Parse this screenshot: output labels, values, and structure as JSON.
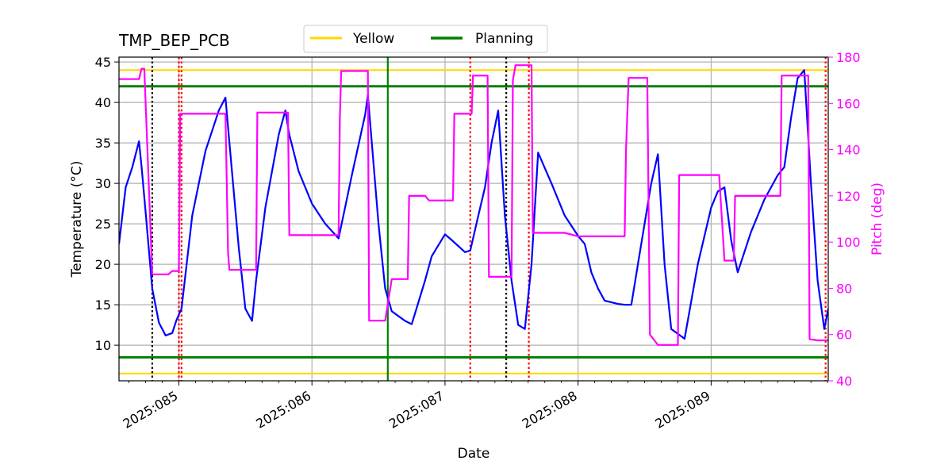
{
  "chart_data": {
    "type": "line",
    "title": "TMP_BEP_PCB",
    "xlabel": "Date",
    "ylabel": "Temperature ($^\\circ$C)",
    "ylabel_display": "Temperature (°C)",
    "y2label": "Pitch (deg)",
    "xlim": [
      84.55,
      89.88
    ],
    "ylim": [
      5.6,
      45.6
    ],
    "y2lim": [
      40,
      180
    ],
    "x_ticks": [
      85,
      86,
      87,
      88,
      89
    ],
    "x_tick_labels": [
      "2025:085",
      "2025:086",
      "2025:087",
      "2025:088",
      "2025:089"
    ],
    "y_ticks": [
      10,
      15,
      20,
      25,
      30,
      35,
      40,
      45
    ],
    "y2_ticks": [
      40,
      60,
      80,
      100,
      120,
      140,
      160,
      180
    ],
    "grid": true,
    "legend_position": "top-center",
    "legend": [
      {
        "name": "Yellow",
        "color": "#ffd700"
      },
      {
        "name": "Planning",
        "color": "#008000"
      }
    ],
    "limits": {
      "yellow": [
        6.5,
        44.0
      ],
      "planning": [
        8.5,
        42.0
      ]
    },
    "colors": {
      "temperature": "#0000ff",
      "pitch": "#ff00ff",
      "yellow": "#ffd700",
      "planning": "#008000",
      "grid": "#b0b0b0"
    },
    "vlines": [
      {
        "x": 84.8,
        "color": "#000000",
        "style": "dotted"
      },
      {
        "x": 85.0,
        "color": "#ff0000",
        "style": "dotted"
      },
      {
        "x": 85.02,
        "color": "#ff0000",
        "style": "dotted"
      },
      {
        "x": 86.57,
        "color": "#008000",
        "style": "solid"
      },
      {
        "x": 87.19,
        "color": "#ff0000",
        "style": "dotted"
      },
      {
        "x": 87.46,
        "color": "#000000",
        "style": "dotted"
      },
      {
        "x": 87.63,
        "color": "#ff0000",
        "style": "dotted"
      },
      {
        "x": 89.86,
        "color": "#ff0000",
        "style": "dotted"
      }
    ],
    "series": [
      {
        "axis": "left",
        "color": "#0000ff",
        "x": [
          84.55,
          84.6,
          84.65,
          84.7,
          84.72,
          84.75,
          84.8,
          84.85,
          84.9,
          84.95,
          84.98,
          85.0,
          85.02,
          85.1,
          85.2,
          85.3,
          85.35,
          85.38,
          85.45,
          85.5,
          85.55,
          85.58,
          85.65,
          85.75,
          85.8,
          85.83,
          85.9,
          86.0,
          86.1,
          86.2,
          86.3,
          86.4,
          86.42,
          86.5,
          86.55,
          86.6,
          86.7,
          86.75,
          86.85,
          86.9,
          87.0,
          87.05,
          87.15,
          87.19,
          87.25,
          87.3,
          87.35,
          87.4,
          87.45,
          87.5,
          87.55,
          87.6,
          87.65,
          87.7,
          87.8,
          87.9,
          88.0,
          88.05,
          88.1,
          88.15,
          88.2,
          88.3,
          88.35,
          88.4,
          88.45,
          88.55,
          88.6,
          88.65,
          88.7,
          88.8,
          88.9,
          89.0,
          89.05,
          89.1,
          89.15,
          89.2,
          89.3,
          89.4,
          89.5,
          89.55,
          89.6,
          89.65,
          89.7,
          89.75,
          89.8,
          89.85,
          89.88
        ],
        "y": [
          22.5,
          29.5,
          32.0,
          35.2,
          32.0,
          26.5,
          17.0,
          12.8,
          11.2,
          11.5,
          13.0,
          13.8,
          14.5,
          26.0,
          34.0,
          39.0,
          40.6,
          35.0,
          22.0,
          14.5,
          13.0,
          18.0,
          27.0,
          36.0,
          39.0,
          36.0,
          31.5,
          27.5,
          25.0,
          23.2,
          31.0,
          38.5,
          40.9,
          25.0,
          17.0,
          14.2,
          13.0,
          12.6,
          18.0,
          21.0,
          23.7,
          23.0,
          21.5,
          21.7,
          26.0,
          29.5,
          35.0,
          39.0,
          26.0,
          18.0,
          12.5,
          12.0,
          20.0,
          33.8,
          30.0,
          26.0,
          23.5,
          22.5,
          19.0,
          17.0,
          15.5,
          15.1,
          15.0,
          15.0,
          20.0,
          30.0,
          33.6,
          20.0,
          12.0,
          10.8,
          20.0,
          27.0,
          29.0,
          29.5,
          23.0,
          19.0,
          24.0,
          28.0,
          31.0,
          32.0,
          38.0,
          43.0,
          44.0,
          30.0,
          18.0,
          12.0,
          14.5
        ]
      },
      {
        "axis": "right",
        "color": "#ff00ff",
        "x": [
          84.55,
          84.6,
          84.7,
          84.72,
          84.74,
          84.8,
          84.85,
          84.88,
          84.92,
          84.95,
          84.98,
          85.0,
          85.01,
          85.1,
          85.2,
          85.3,
          85.35,
          85.37,
          85.38,
          85.45,
          85.55,
          85.58,
          85.59,
          85.7,
          85.8,
          85.82,
          85.83,
          85.9,
          86.0,
          86.1,
          86.2,
          86.21,
          86.22,
          86.3,
          86.4,
          86.42,
          86.43,
          86.5,
          86.55,
          86.6,
          86.7,
          86.72,
          86.73,
          86.85,
          86.88,
          87.0,
          87.05,
          87.06,
          87.07,
          87.15,
          87.2,
          87.21,
          87.3,
          87.32,
          87.33,
          87.45,
          87.5,
          87.51,
          87.53,
          87.6,
          87.65,
          87.66,
          87.75,
          87.8,
          87.9,
          88.0,
          88.1,
          88.2,
          88.3,
          88.35,
          88.36,
          88.37,
          88.38,
          88.5,
          88.52,
          88.54,
          88.6,
          88.7,
          88.75,
          88.76,
          88.8,
          88.9,
          89.0,
          89.05,
          89.06,
          89.1,
          89.15,
          89.17,
          89.18,
          89.25,
          89.35,
          89.45,
          89.5,
          89.52,
          89.53,
          89.65,
          89.7,
          89.73,
          89.74,
          89.8,
          89.86,
          89.87,
          89.88
        ],
        "y": [
          170.5,
          170.5,
          170.5,
          175.0,
          175.0,
          86.0,
          86.0,
          86.0,
          86.0,
          87.5,
          87.5,
          87.5,
          155.5,
          155.5,
          155.5,
          155.5,
          155.5,
          95.0,
          88.0,
          88.0,
          88.0,
          88.0,
          156.0,
          156.0,
          156.0,
          156.0,
          103.0,
          103.0,
          103.0,
          103.0,
          103.0,
          154.0,
          174.0,
          174.0,
          174.0,
          174.0,
          66.0,
          66.0,
          66.0,
          84.0,
          84.0,
          84.0,
          120.0,
          120.0,
          118.0,
          118.0,
          118.0,
          118.0,
          155.5,
          155.5,
          155.5,
          172.0,
          172.0,
          172.0,
          85.0,
          85.0,
          85.0,
          170.0,
          176.5,
          176.5,
          176.5,
          104.0,
          104.0,
          104.0,
          104.0,
          102.5,
          102.5,
          102.5,
          102.5,
          102.5,
          140.0,
          155.0,
          171.0,
          171.0,
          171.0,
          60.0,
          55.5,
          55.5,
          55.5,
          129.0,
          129.0,
          129.0,
          129.0,
          129.0,
          129.0,
          92.0,
          92.0,
          92.0,
          120.0,
          120.0,
          120.0,
          120.0,
          120.0,
          120.0,
          172.0,
          172.0,
          172.0,
          172.0,
          58.0,
          57.5,
          57.5,
          57.5,
          57.5
        ]
      }
    ]
  }
}
